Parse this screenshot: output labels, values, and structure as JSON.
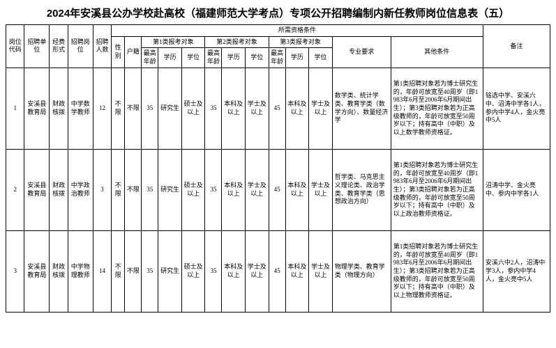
{
  "title": "2024年安溪县公办学校赴高校（福建师范大学考点）专项公开招聘编制内新任教师岗位信息表（五）",
  "headers": {
    "code": "岗位代码",
    "unit": "招聘单位",
    "fund": "经费形式",
    "post": "招聘岗位",
    "num": "招聘人数",
    "qual": "所需资格条件",
    "sex": "性别",
    "hukou": "户籍",
    "cat1": "第1类报考对象",
    "cat2": "第2类报考对象",
    "cat3": "第3类报考对象",
    "age": "最高年龄",
    "edu": "学历",
    "deg": "学位",
    "major": "专业要求",
    "other": "其他条件",
    "remark": "备注"
  },
  "rows": [
    {
      "code": "1",
      "unit": "安溪县教育局",
      "fund": "财政核拨",
      "post": "中学数学教师",
      "num": "12",
      "sex": "不限",
      "hukou": "不限",
      "c1_age": "35",
      "c1_edu": "研究生",
      "c1_deg": "硕士及以上",
      "c2_age": "35",
      "c2_edu": "本科及以上",
      "c2_deg": "学士及以上",
      "c3_age": "45",
      "c3_edu": "本科及以上",
      "c3_deg": "学士及以上",
      "major": "数学类、统计学类、教育学类（数学方向）、数量经济学",
      "other": "第1类招聘对象若为博士研究生的，年龄可放宽至40周岁（即1983年6月至2006年6月期间出生）；第3类招聘对象若为正高级教师的，年龄可放宽至50周岁以下；持有高中（中职）及以上数学教师资格证。",
      "remark": "铭选中学、安溪六中、沼涛中学各1人，参内中学4人，金火亮中5人"
    },
    {
      "code": "2",
      "unit": "安溪县教育局",
      "fund": "财政核拨",
      "post": "中学政治教师",
      "num": "3",
      "sex": "不限",
      "hukou": "不限",
      "c1_age": "35",
      "c1_edu": "研究生",
      "c1_deg": "硕士及以上",
      "c2_age": "35",
      "c2_edu": "本科及以上",
      "c2_deg": "学士及以上",
      "c3_age": "45",
      "c3_edu": "本科及以上",
      "c3_deg": "学士及以上",
      "major": "哲学类、马克思主义理论类、政治学类、教育学类（思想政治方向）",
      "other": "第1类招聘对象若为博士研究生的，年龄可放宽至40周岁（即1983年6月至2006年6月期间出生）；第3类招聘对象若为正高级教师的，年龄可放宽至50周岁以下；持有高中（中职）及以上政治教师资格证。",
      "remark": "沼涛中学、金火亮中、参内中学各1人"
    },
    {
      "code": "3",
      "unit": "安溪县教育局",
      "fund": "财政核拨",
      "post": "中学物理教师",
      "num": "14",
      "sex": "不限",
      "hukou": "不限",
      "c1_age": "35",
      "c1_edu": "研究生",
      "c1_deg": "硕士及以上",
      "c2_age": "35",
      "c2_edu": "本科及以上",
      "c2_deg": "学士及以上",
      "c3_age": "45",
      "c3_edu": "本科及以上",
      "c3_deg": "学士及以上",
      "major": "物理学类、教育学类（物理方向）",
      "other": "第1类招聘对象若为博士研究生的，年龄可放宽至40周岁（即1983年6月至2006年6月期间出生）；第3类招聘对象若为正高级教师的，年龄可放宽至50周岁以下；持有高中（中职）及以上物理教师资格证。",
      "remark": "安溪六中2人，沼涛中学3人，参内中学4人，金火亮中5人"
    }
  ]
}
